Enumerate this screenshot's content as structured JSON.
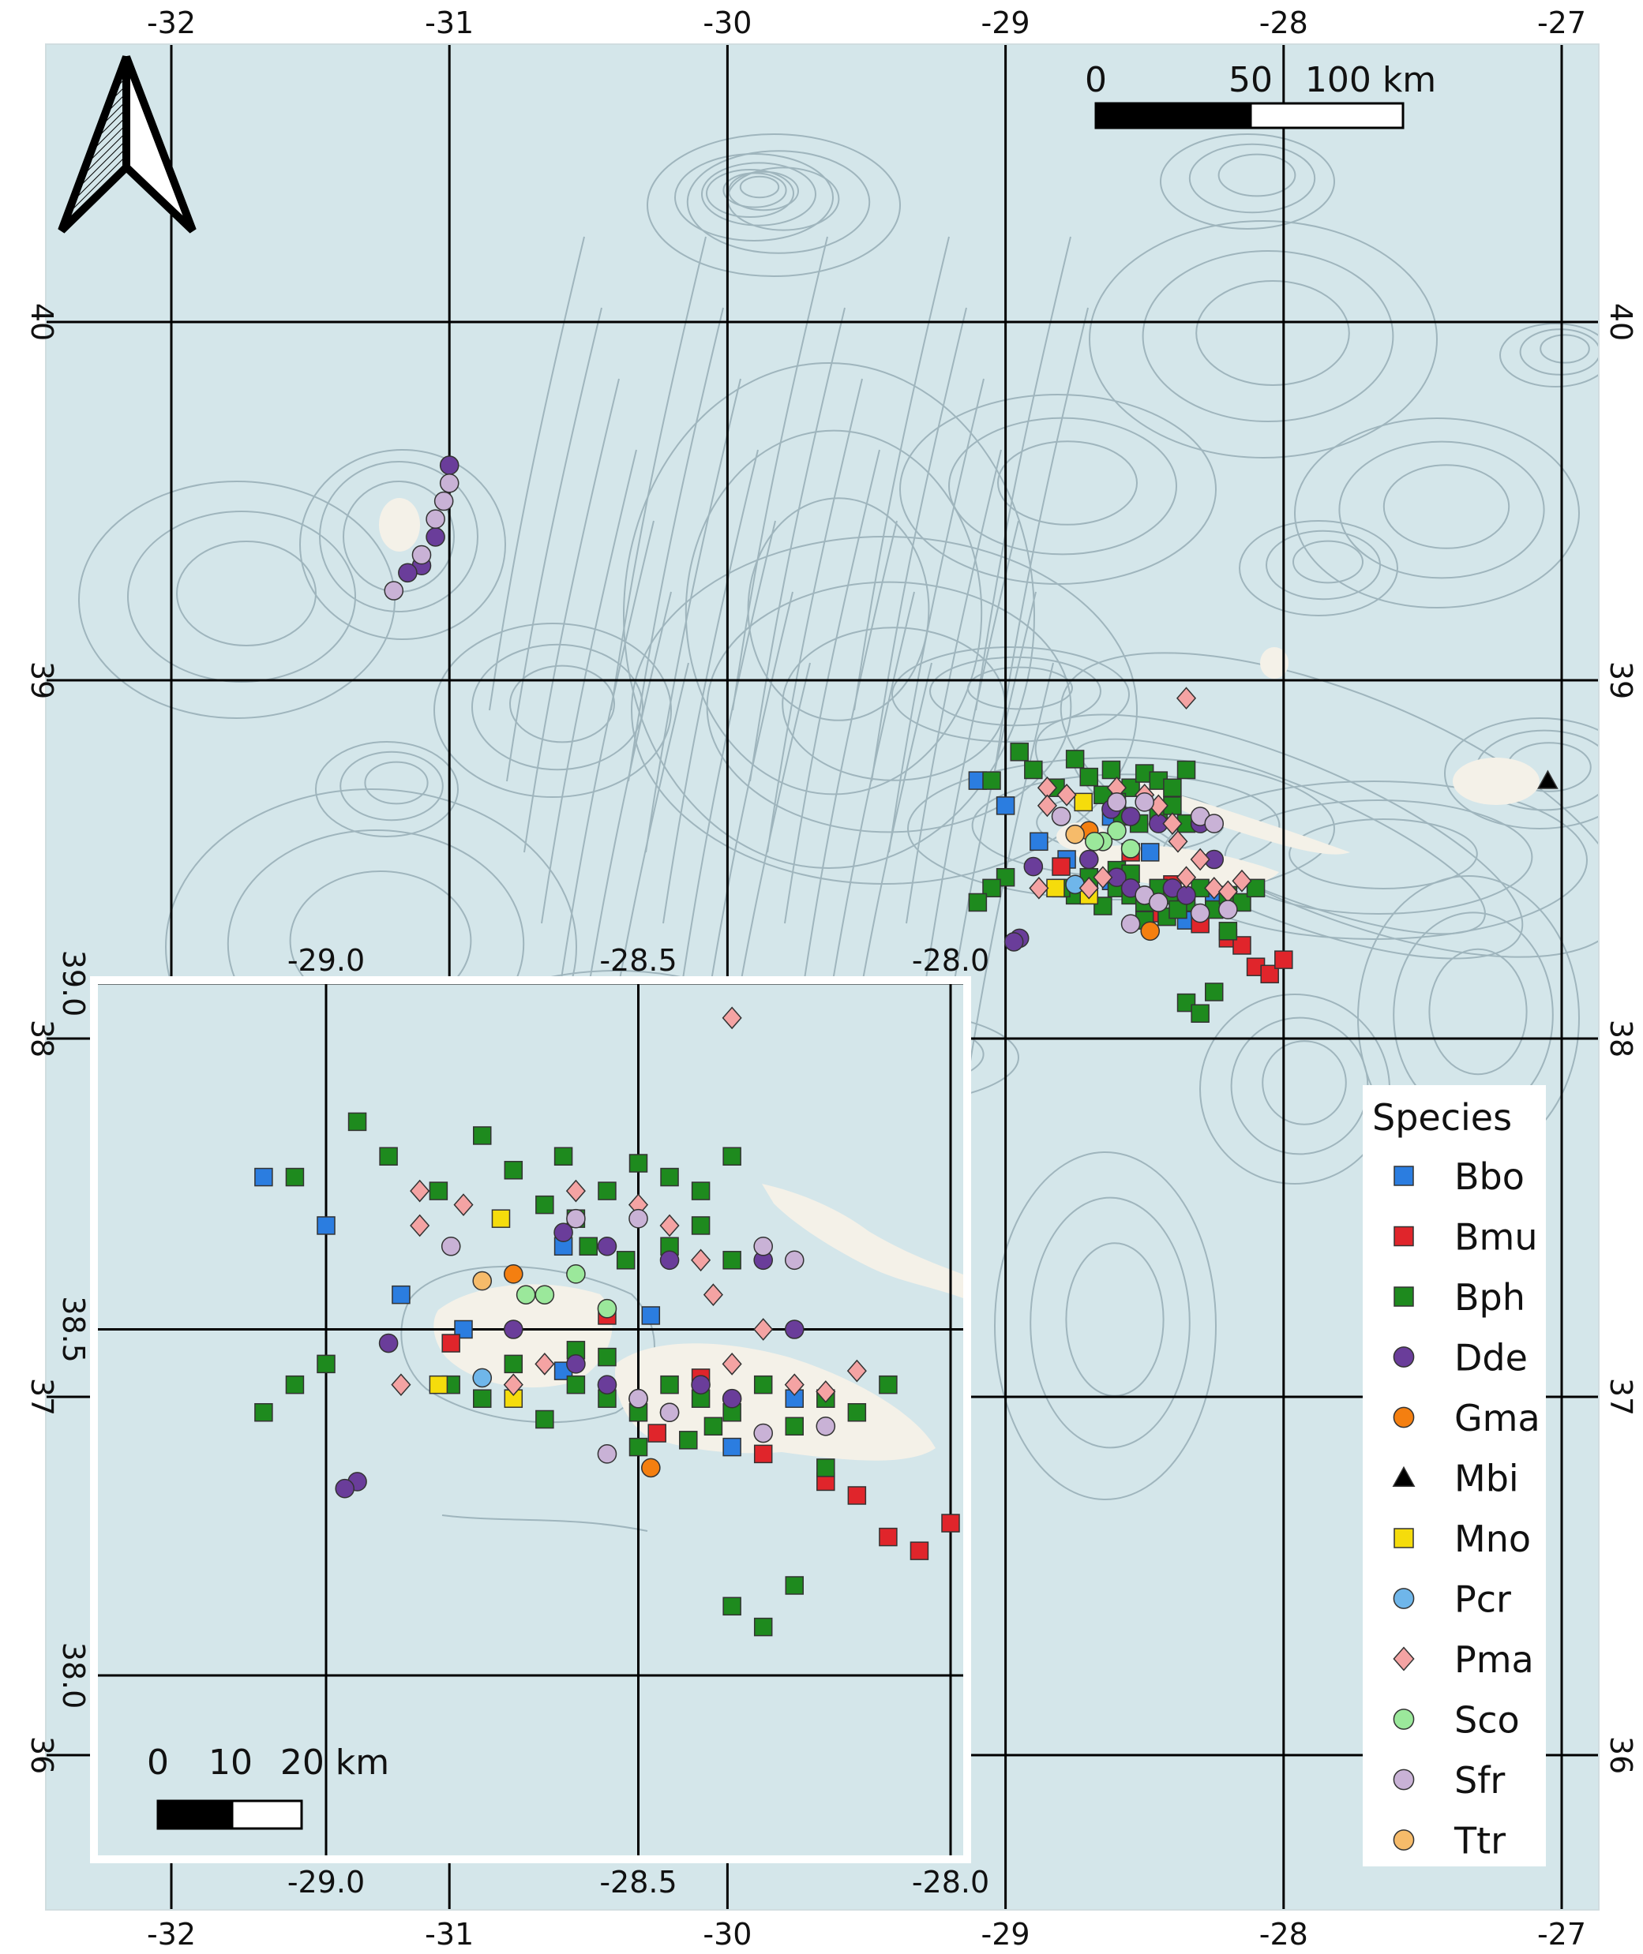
{
  "main_map": {
    "lon_ticks": [
      -32,
      -31,
      -30,
      -29,
      -28,
      -27
    ],
    "lat_ticks": [
      36,
      37,
      38,
      39,
      40
    ],
    "lon_tick_labels": [
      "-32",
      "-31",
      "-30",
      "-29",
      "-28",
      "-27"
    ],
    "lat_tick_labels": [
      "36",
      "37",
      "38",
      "39",
      "40"
    ],
    "scale_bar": {
      "labels": [
        "0",
        "50",
        "100 km"
      ]
    }
  },
  "inset_map": {
    "lon_ticks": [
      -29.0,
      -28.5,
      -28.0
    ],
    "lat_ticks": [
      38.0,
      38.5,
      39.0
    ],
    "lon_tick_labels": [
      "-29.0",
      "-28.5",
      "-28.0"
    ],
    "lat_tick_labels": [
      "38.0",
      "38.5",
      "39.0"
    ],
    "scale_bar": {
      "labels": [
        "0",
        "10",
        "20 km"
      ]
    }
  },
  "north_arrow": {
    "icon": "north-arrow-icon"
  },
  "legend": {
    "title": "Species",
    "items": [
      {
        "code": "Bbo",
        "shape": "square",
        "color": "#2b7de0"
      },
      {
        "code": "Bmu",
        "shape": "square",
        "color": "#e0252b"
      },
      {
        "code": "Bph",
        "shape": "square",
        "color": "#1e8a1e"
      },
      {
        "code": "Dde",
        "shape": "circle",
        "color": "#6a3d9a"
      },
      {
        "code": "Gma",
        "shape": "circle",
        "color": "#f47f10"
      },
      {
        "code": "Mbi",
        "shape": "triangle",
        "color": "#000000"
      },
      {
        "code": "Mno",
        "shape": "square",
        "color": "#f5dc0c"
      },
      {
        "code": "Pcr",
        "shape": "circle",
        "color": "#6fb6ea"
      },
      {
        "code": "Pma",
        "shape": "diamond",
        "color": "#f4a3a3"
      },
      {
        "code": "Sco",
        "shape": "circle",
        "color": "#9be89b"
      },
      {
        "code": "Sfr",
        "shape": "circle",
        "color": "#c9b2d6"
      },
      {
        "code": "Ttr",
        "shape": "circle",
        "color": "#f6bb6a"
      }
    ]
  },
  "colors": {
    "sea": "#d4e6ea",
    "land": "#f4f1e8",
    "contour": "#9fb5bd",
    "grid": "#000000"
  },
  "sightings": {
    "Bbo": [
      [
        -29.1,
        38.72
      ],
      [
        -29.0,
        38.65
      ],
      [
        -28.88,
        38.55
      ],
      [
        -28.78,
        38.5
      ],
      [
        -28.62,
        38.44
      ],
      [
        -28.35,
        38.33
      ],
      [
        -28.25,
        38.4
      ],
      [
        -28.48,
        38.52
      ],
      [
        -28.62,
        38.62
      ]
    ],
    "Bmu": [
      [
        -28.8,
        38.48
      ],
      [
        -28.55,
        38.52
      ],
      [
        -28.3,
        38.32
      ],
      [
        -28.2,
        38.28
      ],
      [
        -28.15,
        38.26
      ],
      [
        -28.4,
        38.43
      ],
      [
        -28.47,
        38.35
      ],
      [
        -28.1,
        38.2
      ],
      [
        -28.05,
        38.18
      ],
      [
        -28.0,
        38.22
      ]
    ],
    "Bph": [
      [
        -29.05,
        38.72
      ],
      [
        -28.95,
        38.8
      ],
      [
        -28.9,
        38.75
      ],
      [
        -28.82,
        38.7
      ],
      [
        -28.75,
        38.78
      ],
      [
        -28.7,
        38.73
      ],
      [
        -28.62,
        38.75
      ],
      [
        -28.55,
        38.7
      ],
      [
        -28.5,
        38.74
      ],
      [
        -28.45,
        38.72
      ],
      [
        -28.4,
        38.7
      ],
      [
        -28.35,
        38.75
      ],
      [
        -28.6,
        38.66
      ],
      [
        -28.65,
        38.68
      ],
      [
        -28.58,
        38.62
      ],
      [
        -28.52,
        38.6
      ],
      [
        -28.45,
        38.62
      ],
      [
        -28.4,
        38.65
      ],
      [
        -28.35,
        38.6
      ],
      [
        -28.7,
        38.45
      ],
      [
        -28.6,
        38.42
      ],
      [
        -28.55,
        38.4
      ],
      [
        -28.5,
        38.38
      ],
      [
        -28.45,
        38.42
      ],
      [
        -28.4,
        38.4
      ],
      [
        -28.35,
        38.38
      ],
      [
        -28.3,
        38.42
      ],
      [
        -28.25,
        38.36
      ],
      [
        -28.2,
        38.4
      ],
      [
        -28.15,
        38.38
      ],
      [
        -28.1,
        38.42
      ],
      [
        -28.75,
        38.4
      ],
      [
        -28.8,
        38.42
      ],
      [
        -29.0,
        38.45
      ],
      [
        -29.05,
        38.42
      ],
      [
        -29.1,
        38.38
      ],
      [
        -28.35,
        38.1
      ],
      [
        -28.3,
        38.07
      ],
      [
        -28.25,
        38.13
      ],
      [
        -28.6,
        38.47
      ],
      [
        -28.55,
        38.46
      ],
      [
        -28.65,
        38.37
      ],
      [
        -28.5,
        38.33
      ],
      [
        -28.42,
        38.34
      ],
      [
        -28.38,
        38.36
      ],
      [
        -28.2,
        38.3
      ]
    ],
    "Dde": [
      [
        -31.0,
        39.6
      ],
      [
        -31.05,
        39.4
      ],
      [
        -31.1,
        39.32
      ],
      [
        -31.15,
        39.3
      ],
      [
        -28.62,
        38.64
      ],
      [
        -28.55,
        38.62
      ],
      [
        -28.45,
        38.6
      ],
      [
        -28.3,
        38.6
      ],
      [
        -28.25,
        38.5
      ],
      [
        -28.7,
        38.5
      ],
      [
        -28.6,
        38.45
      ],
      [
        -28.55,
        38.42
      ],
      [
        -28.5,
        38.4
      ],
      [
        -28.45,
        38.38
      ],
      [
        -28.4,
        38.42
      ],
      [
        -28.35,
        38.4
      ],
      [
        -28.9,
        38.48
      ],
      [
        -28.95,
        38.28
      ],
      [
        -28.97,
        38.27
      ]
    ],
    "Gma": [
      [
        -28.7,
        38.58
      ],
      [
        -28.48,
        38.3
      ]
    ],
    "Mbi": [
      [
        -27.05,
        38.72
      ]
    ],
    "Mno": [
      [
        -28.72,
        38.66
      ],
      [
        -28.82,
        38.42
      ],
      [
        -28.7,
        38.4
      ]
    ],
    "Pcr": [
      [
        -28.75,
        38.43
      ]
    ],
    "Pma": [
      [
        -28.85,
        38.7
      ],
      [
        -28.78,
        38.68
      ],
      [
        -28.6,
        38.7
      ],
      [
        -28.5,
        38.68
      ],
      [
        -28.45,
        38.65
      ],
      [
        -28.4,
        38.6
      ],
      [
        -28.38,
        38.55
      ],
      [
        -28.3,
        38.5
      ],
      [
        -28.35,
        38.45
      ],
      [
        -28.25,
        38.42
      ],
      [
        -28.2,
        38.41
      ],
      [
        -28.15,
        38.44
      ],
      [
        -28.65,
        38.45
      ],
      [
        -28.7,
        38.42
      ],
      [
        -28.35,
        38.95
      ],
      [
        -28.85,
        38.65
      ],
      [
        -28.88,
        38.42
      ]
    ],
    "Sco": [
      [
        -28.6,
        38.58
      ],
      [
        -28.65,
        38.55
      ],
      [
        -28.55,
        38.53
      ],
      [
        -28.68,
        38.55
      ]
    ],
    "Sfr": [
      [
        -31.0,
        39.55
      ],
      [
        -31.02,
        39.5
      ],
      [
        -31.05,
        39.45
      ],
      [
        -31.1,
        39.35
      ],
      [
        -31.2,
        39.25
      ],
      [
        -28.6,
        38.66
      ],
      [
        -28.5,
        38.66
      ],
      [
        -28.3,
        38.62
      ],
      [
        -28.25,
        38.6
      ],
      [
        -28.8,
        38.62
      ],
      [
        -28.5,
        38.4
      ],
      [
        -28.45,
        38.38
      ],
      [
        -28.3,
        38.35
      ],
      [
        -28.2,
        38.36
      ],
      [
        -28.55,
        38.32
      ]
    ],
    "Ttr": [
      [
        -28.75,
        38.57
      ]
    ]
  }
}
